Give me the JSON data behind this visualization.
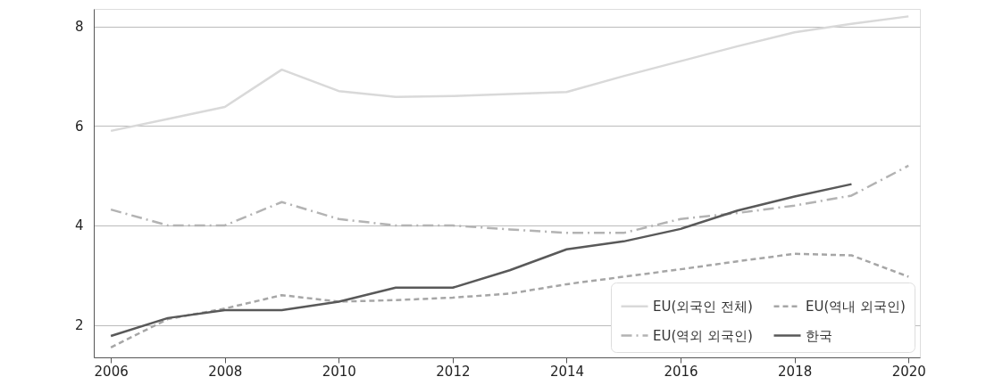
{
  "chart_data": {
    "type": "line",
    "x": [
      2006,
      2007,
      2008,
      2009,
      2010,
      2011,
      2012,
      2013,
      2014,
      2015,
      2016,
      2017,
      2018,
      2019,
      2020
    ],
    "series": [
      {
        "name": "EU(외국인 전체)",
        "color": "#d9d9d9",
        "line_style": "solid",
        "values": [
          5.9,
          6.14,
          6.38,
          7.13,
          6.7,
          6.58,
          6.6,
          6.64,
          6.68,
          7.0,
          7.3,
          7.6,
          7.88,
          8.05,
          8.2
        ]
      },
      {
        "name": "EU(역내 외국인)",
        "color": "#a6a6a6",
        "line_style": "dashed",
        "values": [
          1.55,
          2.12,
          2.33,
          2.6,
          2.47,
          2.5,
          2.55,
          2.63,
          2.82,
          2.97,
          3.12,
          3.28,
          3.43,
          3.4,
          2.97
        ]
      },
      {
        "name": "EU(역외 외국인)",
        "color": "#b3b3b3",
        "line_style": "dashdot",
        "values": [
          4.32,
          4.0,
          4.0,
          4.47,
          4.13,
          4.0,
          4.0,
          3.92,
          3.85,
          3.85,
          4.13,
          4.25,
          4.4,
          4.6,
          5.2
        ]
      },
      {
        "name": "한국",
        "color": "#595959",
        "line_style": "solid",
        "values": [
          1.78,
          2.14,
          2.3,
          2.3,
          2.47,
          2.75,
          2.75,
          3.1,
          3.52,
          3.68,
          3.93,
          4.3,
          4.58,
          4.83,
          null
        ]
      }
    ],
    "xlim": [
      2005.7,
      2020.2
    ],
    "xticks": [
      2006,
      2008,
      2010,
      2012,
      2014,
      2016,
      2018,
      2020
    ],
    "ylim": [
      1.35,
      8.35
    ],
    "yticks": [
      2,
      4,
      6,
      8
    ],
    "grid": "y",
    "legend": "bottom right",
    "marker": "none"
  }
}
